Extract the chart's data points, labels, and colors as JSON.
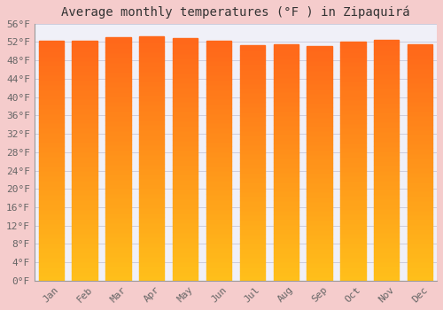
{
  "title": "Average monthly temperatures (°F ) in Zipaquirá",
  "months": [
    "Jan",
    "Feb",
    "Mar",
    "Apr",
    "May",
    "Jun",
    "Jul",
    "Aug",
    "Sep",
    "Oct",
    "Nov",
    "Dec"
  ],
  "values": [
    52.2,
    52.2,
    53.0,
    53.2,
    52.8,
    52.2,
    51.3,
    51.5,
    51.1,
    52.0,
    52.5,
    51.5
  ],
  "bar_color_main": "#FFA500",
  "bar_color_light": "#FFD060",
  "background_color": "#F5CCCC",
  "plot_bg_color": "#F0F0F8",
  "grid_color": "#CCCCDD",
  "ylim": [
    0,
    56
  ],
  "ytick_step": 4,
  "title_fontsize": 10,
  "tick_fontsize": 8,
  "bar_width": 0.75
}
